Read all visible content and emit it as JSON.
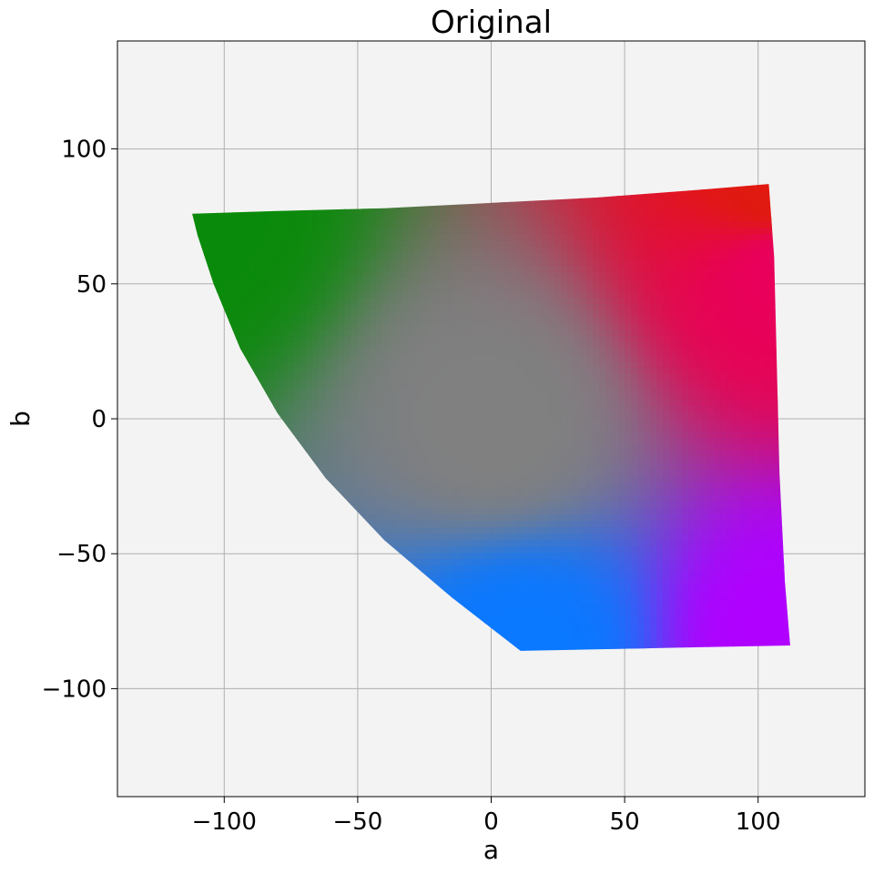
{
  "chart_data": {
    "type": "scatter",
    "title": "Original",
    "xlabel": "a",
    "ylabel": "b",
    "xlim": [
      -140,
      140
    ],
    "ylim": [
      -140,
      140
    ],
    "xticks": [
      -100,
      -50,
      0,
      50,
      100
    ],
    "xtick_labels": [
      "−100",
      "−50",
      "0",
      "50",
      "100"
    ],
    "yticks": [
      -100,
      -50,
      0,
      50,
      100
    ],
    "ytick_labels": [
      "−100",
      "−50",
      "0",
      "50",
      "100"
    ],
    "grid": true,
    "description_of_points": "dense point cloud of sRGB gamut in CIELAB a*-b* plane, colored by the RGB color of each point",
    "region_corners": [
      {
        "a": -112,
        "b": 76,
        "color": "#0a8a0a"
      },
      {
        "a": 104,
        "b": 87,
        "color": "#e01a10"
      },
      {
        "a": 106,
        "b": 55,
        "color": "#e8005a"
      },
      {
        "a": 112,
        "b": -84,
        "color": "#b000ff"
      },
      {
        "a": 11,
        "b": -86,
        "color": "#0a78ff"
      },
      {
        "a": 0,
        "b": 0,
        "color": "#808080"
      }
    ],
    "boundary": [
      {
        "a": -112,
        "b": 76
      },
      {
        "a": -80,
        "b": 77
      },
      {
        "a": -40,
        "b": 78
      },
      {
        "a": 0,
        "b": 80
      },
      {
        "a": 40,
        "b": 82
      },
      {
        "a": 80,
        "b": 85
      },
      {
        "a": 104,
        "b": 87
      },
      {
        "a": 106,
        "b": 60
      },
      {
        "a": 107,
        "b": 20
      },
      {
        "a": 108,
        "b": -20
      },
      {
        "a": 110,
        "b": -60
      },
      {
        "a": 112,
        "b": -84
      },
      {
        "a": 60,
        "b": -85
      },
      {
        "a": 11,
        "b": -86
      },
      {
        "a": -15,
        "b": -66
      },
      {
        "a": -40,
        "b": -45
      },
      {
        "a": -62,
        "b": -22
      },
      {
        "a": -80,
        "b": 2
      },
      {
        "a": -94,
        "b": 26
      },
      {
        "a": -104,
        "b": 50
      },
      {
        "a": -110,
        "b": 68
      },
      {
        "a": -112,
        "b": 76
      }
    ],
    "colors": {
      "plot_background": "#f3f3f3",
      "grid": "#b0b0b0"
    }
  }
}
